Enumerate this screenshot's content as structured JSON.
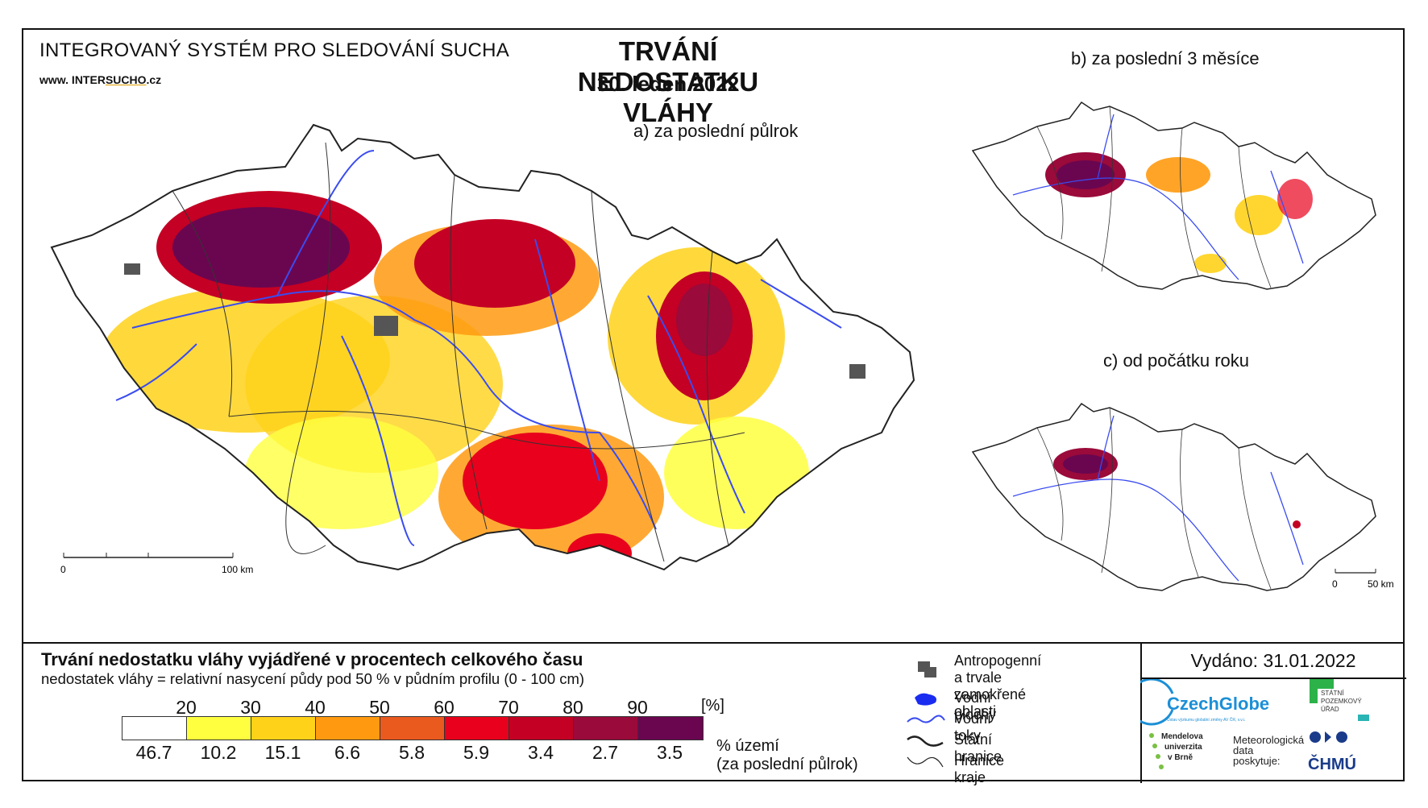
{
  "header": {
    "system_title": "INTEGROVANÝ SYSTÉM PRO SLEDOVÁNÍ SUCHA",
    "url_prefix": "www. INTER",
    "url_brand": "SUCHO",
    "url_suffix": ".cz",
    "title": "TRVÁNÍ NEDOSTATKU VLÁHY",
    "date": "30. leden 2022"
  },
  "maps": {
    "a_label": "a) za poslední půlrok",
    "b_label": "b) za poslední 3 měsíce",
    "c_label": "c) od počátku roku",
    "main_scale_start": "0",
    "main_scale_end": "100 km",
    "small_scale_start": "0",
    "small_scale_end": "50 km"
  },
  "legend": {
    "title": "Trvání nedostatku vláhy vyjádřené v procentech celkového času",
    "subtitle": "nedostatek vláhy = relativní nasycení půdy pod 50 % v půdním profilu (0 - 100 cm)",
    "units": "[%]",
    "ticks": [
      "20",
      "30",
      "40",
      "50",
      "60",
      "70",
      "80",
      "90"
    ],
    "classes": [
      {
        "color": "#ffffff",
        "pct": "46.7"
      },
      {
        "color": "#ffff40",
        "pct": "10.2"
      },
      {
        "color": "#ffd21a",
        "pct": "15.1"
      },
      {
        "color": "#ff9a10",
        "pct": "6.6"
      },
      {
        "color": "#ea5a1e",
        "pct": "5.8"
      },
      {
        "color": "#e8001c",
        "pct": "5.9"
      },
      {
        "color": "#c40024",
        "pct": "3.4"
      },
      {
        "color": "#9a0a3a",
        "pct": "2.7"
      },
      {
        "color": "#6a0650",
        "pct": "3.5"
      }
    ],
    "territory_line1": "% území",
    "territory_line2": "(za poslední půlrok)"
  },
  "symbols": {
    "anthropogenic_line1": "Antropogenní a trvale",
    "anthropogenic_line2": "zamokřené oblasti",
    "water_bodies": "Vodní plochy",
    "rivers": "Vodní toky",
    "state_border": "Státní hranice",
    "region_border": "Hranice kraje"
  },
  "footer": {
    "issued": "Vydáno: 31.01.2022",
    "czechglobe": "CzechGlobe",
    "czechglobe_sub": "Ústav výzkumu globální změny AV ČR, v.v.i.",
    "spu_line1": "STÁTNÍ",
    "spu_line2": "POZEMKOVÝ",
    "spu_line3": "ÚŘAD",
    "mendel_line1": "Mendelova",
    "mendel_line2": "univerzita",
    "mendel_line3": "v Brně",
    "met_line1": "Meteorologická",
    "met_line2": "data",
    "met_line3": "poskytuje:",
    "chmu": "ČHMÚ"
  },
  "colors": {
    "river": "#3a4cf0",
    "border": "#222222",
    "anthropogenic": "#555555"
  }
}
